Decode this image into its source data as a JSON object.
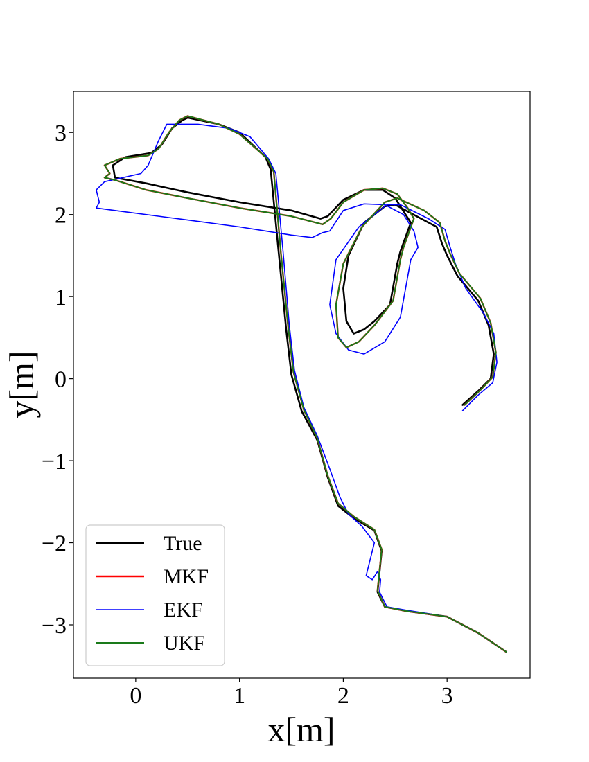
{
  "chart_data": {
    "type": "line",
    "title": "",
    "xlabel": "x[m]",
    "ylabel": "y[m]",
    "xlim": [
      -0.6,
      3.8
    ],
    "ylim": [
      -3.65,
      3.5
    ],
    "xticks": [
      0,
      1,
      2,
      3
    ],
    "yticks": [
      -3,
      -2,
      -1,
      0,
      1,
      2,
      3
    ],
    "xtick_labels": [
      "0",
      "1",
      "2",
      "3"
    ],
    "ytick_labels": [
      "−3",
      "−2",
      "−1",
      "0",
      "1",
      "2",
      "3"
    ],
    "grid": false,
    "legend_position": "lower-left",
    "series": [
      {
        "name": "True",
        "color": "#000000",
        "x": [
          3.57,
          3.3,
          3.0,
          2.6,
          2.4,
          2.33,
          2.37,
          2.3,
          2.1,
          1.95,
          1.85,
          1.75,
          1.6,
          1.5,
          1.45,
          1.38,
          1.3,
          1.25,
          1.0,
          0.8,
          0.5,
          0.45,
          0.35,
          0.25,
          0.15,
          -0.1,
          -0.22,
          -0.2,
          0.1,
          0.5,
          1.0,
          1.5,
          1.78,
          1.85,
          2.0,
          2.2,
          2.38,
          2.5,
          2.6,
          2.65,
          2.55,
          2.52,
          2.45,
          2.3,
          2.2,
          2.1,
          2.03,
          2.0,
          2.05,
          2.2,
          2.4,
          2.5,
          2.75,
          2.9,
          2.95,
          3.0,
          3.1,
          3.3,
          3.4,
          3.45,
          3.42,
          3.3,
          3.15
        ],
        "y": [
          -3.33,
          -3.1,
          -2.9,
          -2.83,
          -2.78,
          -2.6,
          -2.1,
          -1.85,
          -1.7,
          -1.55,
          -1.2,
          -0.75,
          -0.4,
          0.05,
          0.6,
          1.5,
          2.55,
          2.7,
          3.0,
          3.1,
          3.18,
          3.15,
          3.05,
          2.85,
          2.75,
          2.7,
          2.6,
          2.45,
          2.38,
          2.27,
          2.15,
          2.05,
          1.95,
          1.98,
          2.18,
          2.3,
          2.3,
          2.2,
          2.0,
          1.9,
          1.55,
          1.4,
          0.9,
          0.7,
          0.6,
          0.55,
          0.7,
          1.1,
          1.5,
          1.9,
          2.1,
          2.12,
          1.95,
          1.85,
          1.65,
          1.5,
          1.25,
          0.95,
          0.65,
          0.3,
          0.0,
          -0.15,
          -0.32
        ]
      },
      {
        "name": "MKF",
        "color": "#ff0000",
        "x": [
          3.57,
          3.3,
          3.0,
          2.6,
          2.4,
          2.33,
          2.37,
          2.3,
          2.1,
          1.95,
          1.85,
          1.75,
          1.62,
          1.52,
          1.47,
          1.4,
          1.33,
          1.27,
          1.0,
          0.8,
          0.5,
          0.42,
          0.32,
          0.22,
          0.12,
          -0.15,
          -0.3,
          -0.25,
          -0.3,
          -0.2,
          0.1,
          0.5,
          1.0,
          1.5,
          1.8,
          1.88,
          2.0,
          2.2,
          2.38,
          2.52,
          2.62,
          2.68,
          2.58,
          2.55,
          2.48,
          2.3,
          2.15,
          2.03,
          1.95,
          1.93,
          2.0,
          2.18,
          2.4,
          2.52,
          2.78,
          2.93,
          2.98,
          3.03,
          3.12,
          3.32,
          3.42,
          3.47,
          3.44,
          3.32,
          3.17
        ],
        "y": [
          -3.33,
          -3.1,
          -2.9,
          -2.83,
          -2.78,
          -2.58,
          -2.08,
          -1.84,
          -1.68,
          -1.52,
          -1.18,
          -0.73,
          -0.38,
          0.08,
          0.62,
          1.52,
          2.52,
          2.68,
          2.98,
          3.1,
          3.2,
          3.15,
          3.0,
          2.8,
          2.72,
          2.68,
          2.6,
          2.5,
          2.45,
          2.42,
          2.3,
          2.2,
          2.08,
          1.98,
          1.88,
          1.95,
          2.15,
          2.3,
          2.32,
          2.25,
          2.08,
          1.95,
          1.6,
          1.45,
          0.95,
          0.65,
          0.45,
          0.38,
          0.5,
          0.9,
          1.4,
          1.85,
          2.15,
          2.2,
          2.05,
          1.9,
          1.68,
          1.52,
          1.28,
          0.98,
          0.68,
          0.32,
          0.02,
          -0.14,
          -0.32
        ]
      },
      {
        "name": "EKF",
        "color": "#0000ff",
        "x": [
          3.57,
          3.3,
          3.0,
          2.6,
          2.42,
          2.35,
          2.36,
          2.33,
          2.28,
          2.22,
          2.3,
          2.18,
          2.05,
          1.97,
          1.87,
          1.75,
          1.62,
          1.53,
          1.48,
          1.42,
          1.35,
          1.28,
          1.1,
          0.9,
          0.6,
          0.3,
          0.22,
          0.12,
          0.05,
          -0.3,
          -0.38,
          -0.35,
          -0.38,
          -0.2,
          0.4,
          1.0,
          1.5,
          1.7,
          1.8,
          1.87,
          2.0,
          2.2,
          2.4,
          2.58,
          2.68,
          2.72,
          2.65,
          2.6,
          2.55,
          2.4,
          2.2,
          2.05,
          1.93,
          1.87,
          1.93,
          2.15,
          2.42,
          2.55,
          2.82,
          2.98,
          3.03,
          3.08,
          3.18,
          3.35,
          3.45,
          3.48,
          3.44,
          3.3,
          3.15
        ],
        "y": [
          -3.33,
          -3.1,
          -2.9,
          -2.82,
          -2.78,
          -2.6,
          -2.45,
          -2.35,
          -2.45,
          -2.4,
          -2.0,
          -1.8,
          -1.65,
          -1.45,
          -1.1,
          -0.7,
          -0.35,
          0.1,
          0.65,
          1.55,
          2.5,
          2.68,
          2.95,
          3.05,
          3.1,
          3.1,
          2.9,
          2.6,
          2.5,
          2.4,
          2.3,
          2.15,
          2.08,
          2.05,
          1.95,
          1.85,
          1.75,
          1.72,
          1.78,
          1.8,
          2.05,
          2.13,
          2.12,
          2.0,
          1.8,
          1.6,
          1.45,
          1.1,
          0.75,
          0.45,
          0.3,
          0.35,
          0.55,
          0.9,
          1.45,
          1.85,
          2.12,
          2.12,
          1.95,
          1.82,
          1.6,
          1.4,
          1.1,
          0.8,
          0.55,
          0.2,
          -0.05,
          -0.2,
          -0.39
        ]
      },
      {
        "name": "UKF",
        "color": "#1a7a1a",
        "x": [
          3.57,
          3.3,
          3.0,
          2.6,
          2.4,
          2.33,
          2.37,
          2.3,
          2.1,
          1.95,
          1.85,
          1.75,
          1.62,
          1.52,
          1.47,
          1.4,
          1.33,
          1.27,
          1.0,
          0.8,
          0.5,
          0.42,
          0.32,
          0.22,
          0.12,
          -0.15,
          -0.3,
          -0.25,
          -0.3,
          -0.2,
          0.1,
          0.5,
          1.0,
          1.5,
          1.8,
          1.88,
          2.0,
          2.2,
          2.38,
          2.52,
          2.62,
          2.68,
          2.58,
          2.55,
          2.48,
          2.3,
          2.15,
          2.03,
          1.95,
          1.93,
          2.0,
          2.18,
          2.4,
          2.52,
          2.78,
          2.93,
          2.98,
          3.03,
          3.12,
          3.32,
          3.42,
          3.47,
          3.44,
          3.32,
          3.17
        ],
        "y": [
          -3.33,
          -3.1,
          -2.9,
          -2.83,
          -2.78,
          -2.58,
          -2.08,
          -1.84,
          -1.68,
          -1.52,
          -1.18,
          -0.73,
          -0.38,
          0.08,
          0.62,
          1.52,
          2.52,
          2.68,
          2.98,
          3.1,
          3.2,
          3.15,
          3.0,
          2.8,
          2.72,
          2.68,
          2.6,
          2.5,
          2.45,
          2.42,
          2.3,
          2.2,
          2.08,
          1.98,
          1.88,
          1.95,
          2.15,
          2.3,
          2.32,
          2.25,
          2.08,
          1.95,
          1.6,
          1.45,
          0.95,
          0.65,
          0.45,
          0.38,
          0.5,
          0.9,
          1.4,
          1.85,
          2.15,
          2.2,
          2.05,
          1.9,
          1.68,
          1.52,
          1.28,
          0.98,
          0.68,
          0.32,
          0.02,
          -0.14,
          -0.32
        ]
      }
    ]
  }
}
